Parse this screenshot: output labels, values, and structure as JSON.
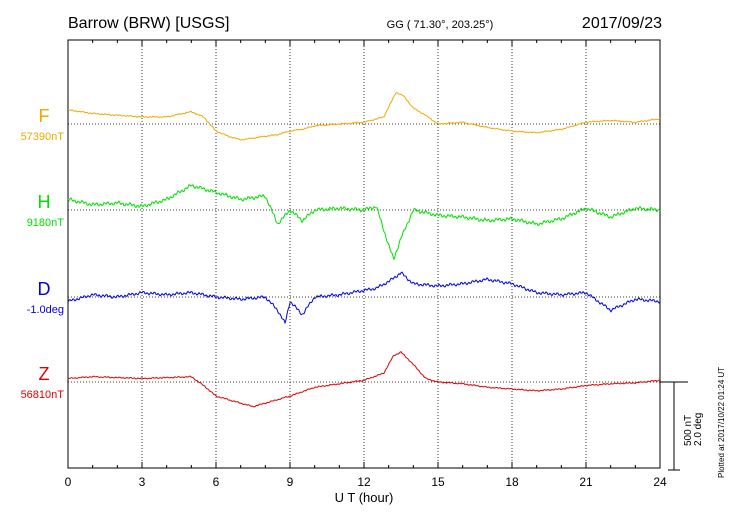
{
  "header": {
    "station": "Barrow (BRW)  [USGS]",
    "coords": "GG ( 71.30°, 203.25°)",
    "date": "2017/09/23"
  },
  "footer": {
    "plotted_at": "Plotted at 2017/10/22 01:24 UT"
  },
  "scale_bar": {
    "nT_label": "500 nT",
    "deg_label": "2.0 deg"
  },
  "colors": {
    "F": "#f0a800",
    "H": "#00e000",
    "D": "#0000e0",
    "Z": "#e00000",
    "axis": "#000000"
  },
  "chart_data": {
    "type": "line",
    "xlabel": "U T (hour)",
    "xlim": [
      0,
      24
    ],
    "xticks": [
      "0",
      "3",
      "6",
      "9",
      "12",
      "15",
      "18",
      "21",
      "24"
    ],
    "grid": true,
    "series": [
      {
        "name": "F",
        "baseline_label": "57390nT",
        "x": [
          0,
          1,
          2,
          3,
          4,
          5,
          5.5,
          6,
          6.5,
          7,
          7.5,
          8,
          8.5,
          9,
          9.5,
          10,
          11,
          12,
          12.8,
          13.3,
          13.6,
          14,
          14.5,
          15,
          16,
          17,
          18,
          19,
          20,
          21,
          22,
          23,
          24
        ],
        "y": [
          80,
          60,
          50,
          40,
          40,
          70,
          40,
          -40,
          -70,
          -90,
          -80,
          -70,
          -60,
          -40,
          -30,
          -10,
          0,
          10,
          40,
          180,
          160,
          90,
          50,
          0,
          10,
          -20,
          -40,
          -50,
          -30,
          10,
          20,
          10,
          30
        ]
      },
      {
        "name": "H",
        "baseline_label": "9180nT",
        "x": [
          0,
          1,
          2,
          3,
          4,
          5,
          5.5,
          6,
          7,
          8,
          8.5,
          9,
          9.5,
          10,
          11,
          12,
          12.5,
          13,
          13.2,
          13.5,
          14,
          15,
          16,
          17,
          18,
          19,
          20,
          21,
          22,
          23,
          24
        ],
        "y": [
          60,
          30,
          40,
          20,
          60,
          140,
          120,
          100,
          60,
          80,
          -80,
          0,
          -60,
          0,
          10,
          0,
          20,
          -200,
          -280,
          -160,
          0,
          -30,
          -40,
          -60,
          -50,
          -80,
          -50,
          10,
          -40,
          10,
          0
        ]
      },
      {
        "name": "D",
        "baseline_label": "-1.0deg",
        "x": [
          0,
          1,
          2,
          3,
          4,
          5,
          6,
          7,
          8,
          8.5,
          8.8,
          9,
          9.5,
          10,
          11,
          12,
          12.5,
          13,
          13.5,
          14,
          15,
          16,
          17,
          18,
          19,
          20,
          21,
          22,
          23,
          24
        ],
        "y": [
          -0.1,
          0.05,
          0.0,
          0.1,
          0.05,
          0.1,
          0.0,
          -0.05,
          0.0,
          -0.3,
          -0.6,
          -0.1,
          -0.4,
          0.0,
          0.05,
          0.15,
          0.2,
          0.35,
          0.55,
          0.3,
          0.25,
          0.3,
          0.4,
          0.3,
          0.1,
          0.05,
          0.1,
          -0.3,
          -0.05,
          -0.1
        ]
      },
      {
        "name": "Z",
        "baseline_label": "56810nT",
        "x": [
          0,
          1,
          2,
          3,
          4,
          5,
          5.5,
          6,
          6.5,
          7,
          7.5,
          8,
          8.5,
          9,
          10,
          11,
          12,
          12.8,
          13.2,
          13.5,
          14,
          14.5,
          15,
          16,
          17,
          18,
          19,
          20,
          21,
          22,
          23,
          24
        ],
        "y": [
          20,
          30,
          25,
          20,
          25,
          30,
          -20,
          -80,
          -100,
          -120,
          -140,
          -120,
          -100,
          -80,
          -30,
          -10,
          10,
          50,
          150,
          170,
          100,
          20,
          0,
          -10,
          -30,
          -40,
          -50,
          -40,
          -20,
          -10,
          -5,
          10
        ]
      }
    ]
  }
}
